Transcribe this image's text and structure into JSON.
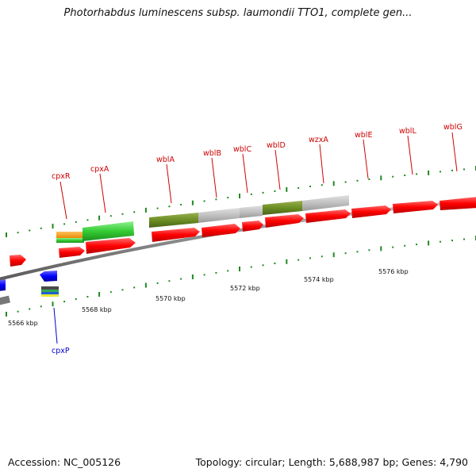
{
  "title": "Photorhabdus luminescens subsp. laumondii TTO1, complete gen...",
  "footer": {
    "accession": "Accession: NC_005126",
    "stats": "Topology: circular; Length: 5,688,987 bp; Genes: 4,790"
  },
  "colors": {
    "gene_forward": "#ff0000",
    "gene_reverse": "#0000ff",
    "label_forward": "#cc0000",
    "label_reverse": "#0000cc",
    "backbone": "#808080",
    "tick": "#1f8a1f"
  },
  "scale_labels": [
    "5566 kbp",
    "5568 kbp",
    "5570 kbp",
    "5572 kbp",
    "5574 kbp",
    "5576 kbp"
  ],
  "gene_labels": {
    "forward": [
      "cpxR",
      "cpxA",
      "wblA",
      "wblB",
      "wblC",
      "wblD",
      "wzxA",
      "wblE",
      "wblL",
      "wblG"
    ],
    "reverse": [
      "cpxP"
    ]
  }
}
